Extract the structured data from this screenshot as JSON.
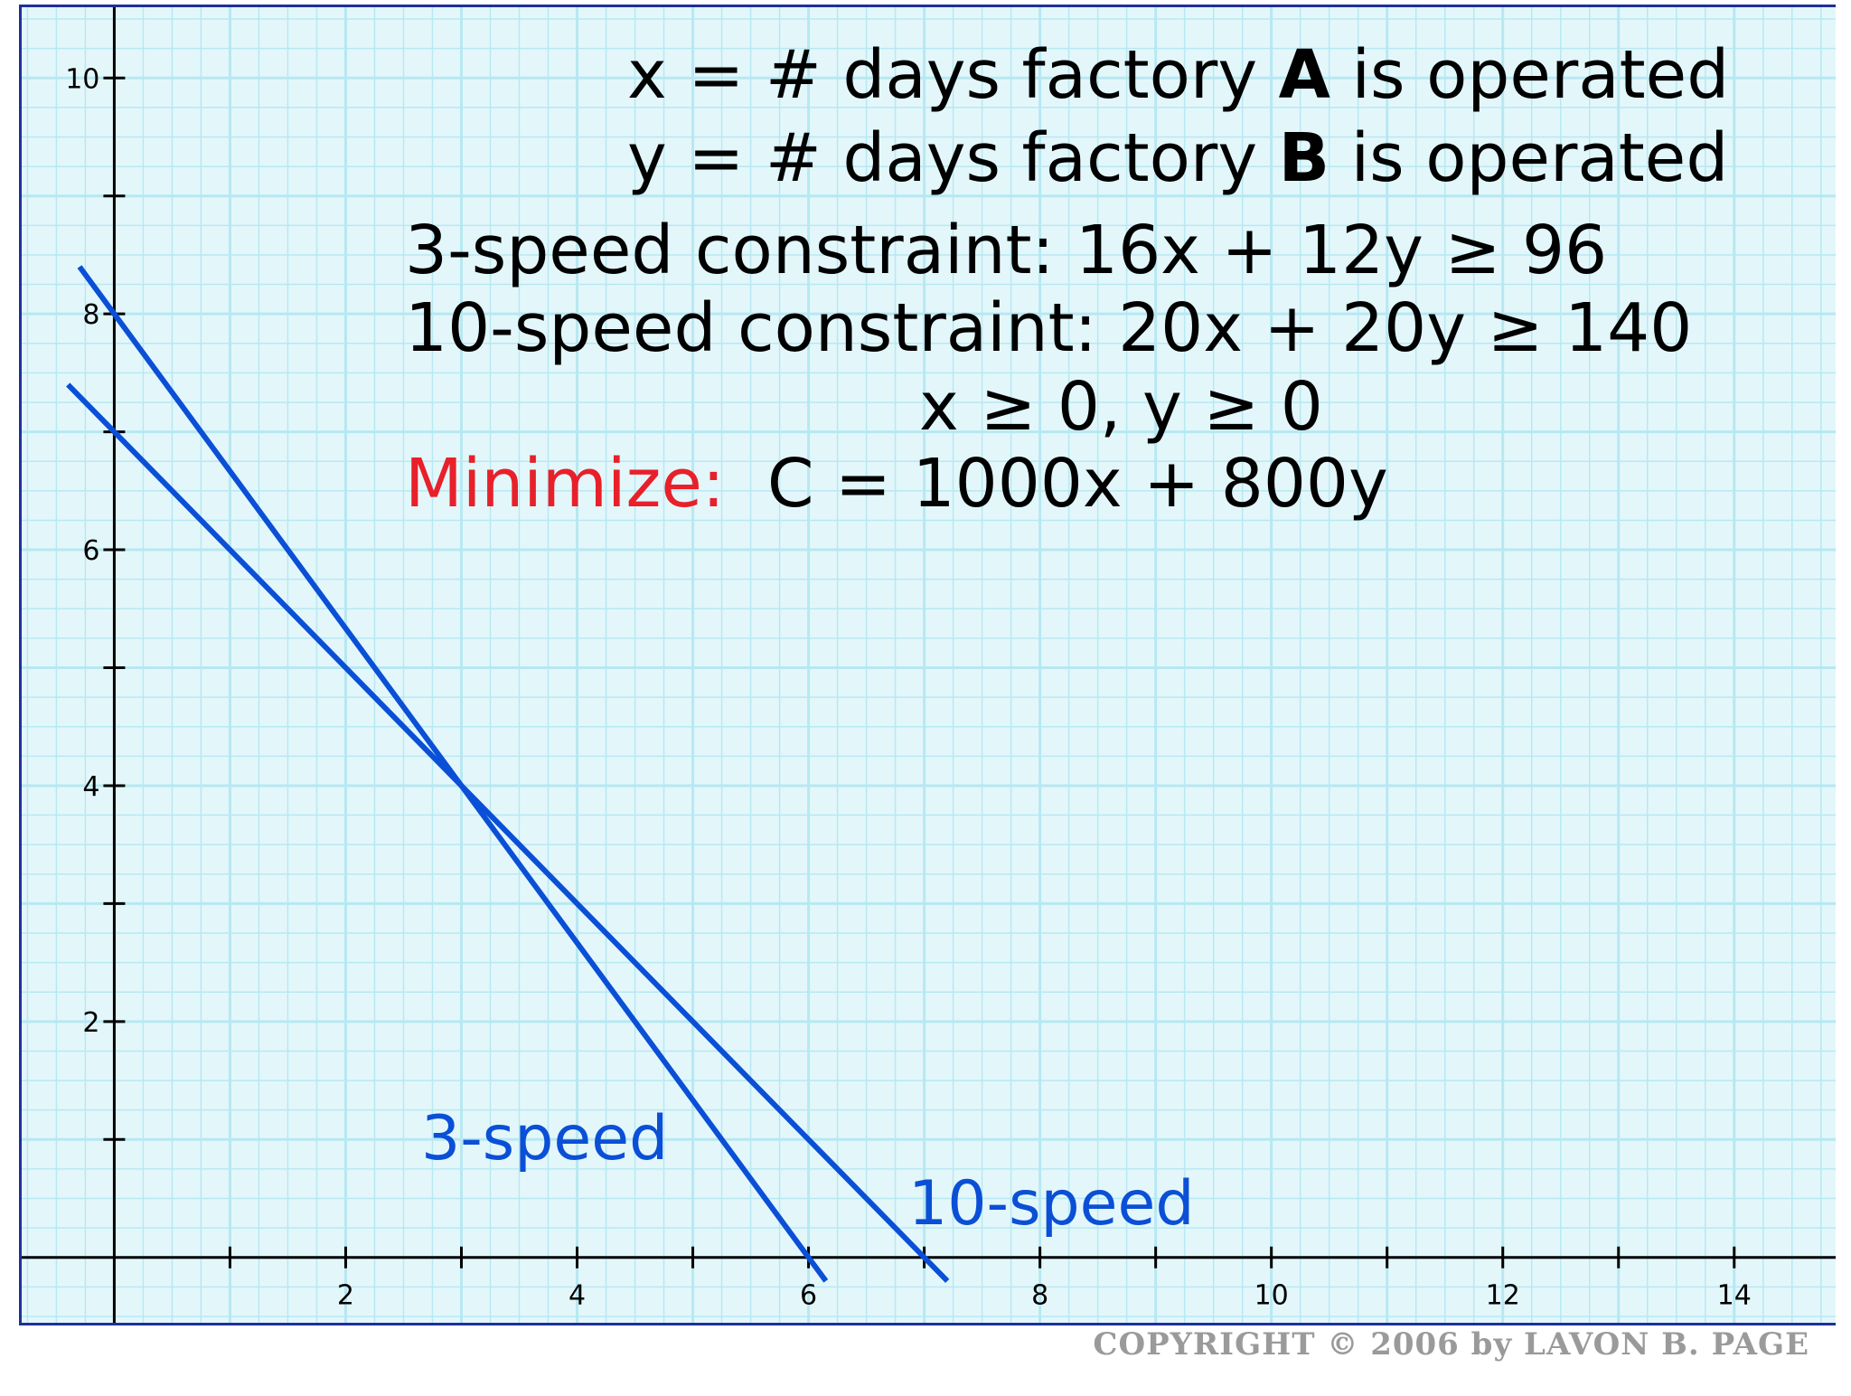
{
  "definitions": {
    "x_prefix": "x = # days factory ",
    "x_factory": "A",
    "x_suffix": " is operated",
    "y_prefix": "y = # days factory ",
    "y_factory": "B",
    "y_suffix": " is operated"
  },
  "constraints": {
    "three_speed": "3-speed constraint: 16x + 12y ≥ 96",
    "ten_speed": "10-speed constraint: 20x + 20y ≥ 140",
    "nonneg": "x ≥ 0, y ≥ 0"
  },
  "objective": {
    "label": "Minimize:",
    "expression": "C = 1000x + 800y",
    "label_color": "#e8202a"
  },
  "copyright": "COPYRIGHT © 2006 by LAVON B. PAGE",
  "colors": {
    "line": "#0a4fd6",
    "grid": "#b7e8f2",
    "background": "#e3f7fb",
    "border": "#1f2f9a"
  },
  "chart_data": {
    "type": "line",
    "xlim": [
      -0.8,
      14.9
    ],
    "ylim": [
      -0.6,
      10.6
    ],
    "x_ticks": [
      1,
      2,
      3,
      4,
      5,
      6,
      7,
      8,
      9,
      10,
      11,
      12,
      13,
      14
    ],
    "x_tick_labels": [
      "2",
      "4",
      "6",
      "8",
      "10",
      "12",
      "14"
    ],
    "y_ticks": [
      1,
      2,
      3,
      4,
      5,
      6,
      7,
      8,
      9,
      10
    ],
    "y_tick_labels": [
      "2",
      "4",
      "6",
      "8",
      "10"
    ],
    "grid": true,
    "series": [
      {
        "name": "3-speed",
        "x": [
          -0.3,
          6.15
        ],
        "y": [
          8.4,
          -0.2
        ]
      },
      {
        "name": "10-speed",
        "x": [
          -0.4,
          7.2
        ],
        "y": [
          7.4,
          -0.2
        ]
      }
    ]
  }
}
